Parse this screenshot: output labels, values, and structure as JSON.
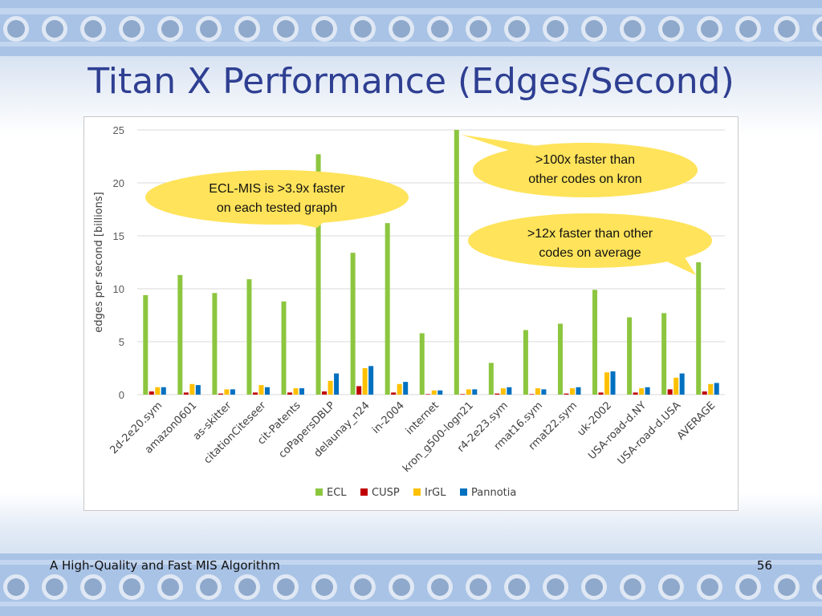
{
  "slide": {
    "title": "Titan X Performance (Edges/Second)",
    "footer": "A High-Quality and Fast MIS Algorithm",
    "page_number": "56"
  },
  "colors": {
    "title": "#2e3f92",
    "callout_fill": "#ffe35a",
    "ECL": "#8cc63f",
    "CUSP": "#c00000",
    "IrGL": "#ffc000",
    "Pannotia": "#0070c0"
  },
  "chart_data": {
    "type": "bar",
    "title": "",
    "xlabel": "",
    "ylabel": "edges per second [billions]",
    "ylim": [
      0,
      25
    ],
    "yticks": [
      0,
      5,
      10,
      15,
      20,
      25
    ],
    "grid": true,
    "legend_position": "bottom",
    "categories": [
      "2d-2e20.sym",
      "amazon0601",
      "as-skitter",
      "citationCiteseer",
      "cit-Patents",
      "coPapersDBLP",
      "delaunay_n24",
      "in-2004",
      "internet",
      "kron_g500-logn21",
      "r4-2e23.sym",
      "rmat16.sym",
      "rmat22.sym",
      "uk-2002",
      "USA-road-d.NY",
      "USA-road-d.USA",
      "AVERAGE"
    ],
    "series": [
      {
        "name": "ECL",
        "values": [
          9.4,
          11.3,
          9.6,
          10.9,
          8.8,
          22.7,
          13.4,
          16.2,
          5.8,
          25.0,
          3.0,
          6.1,
          6.7,
          9.9,
          7.3,
          7.7,
          12.5
        ]
      },
      {
        "name": "CUSP",
        "values": [
          0.3,
          0.2,
          0.1,
          0.2,
          0.2,
          0.3,
          0.8,
          0.2,
          0.05,
          0.05,
          0.1,
          0.05,
          0.1,
          0.2,
          0.2,
          0.5,
          0.3
        ]
      },
      {
        "name": "IrGL",
        "values": [
          0.7,
          1.0,
          0.5,
          0.9,
          0.6,
          1.3,
          2.5,
          1.0,
          0.4,
          0.5,
          0.6,
          0.6,
          0.6,
          2.1,
          0.6,
          1.6,
          1.0
        ]
      },
      {
        "name": "Pannotia",
        "values": [
          0.7,
          0.9,
          0.5,
          0.7,
          0.6,
          2.0,
          2.7,
          1.2,
          0.4,
          0.5,
          0.7,
          0.5,
          0.7,
          2.2,
          0.7,
          2.0,
          1.1
        ]
      }
    ],
    "annotations": [
      {
        "text_lines": [
          ">100x faster than",
          "other codes on kron"
        ]
      },
      {
        "text_lines": [
          "ECL-MIS is >3.9x faster",
          "on each tested graph"
        ]
      },
      {
        "text_lines": [
          ">12x faster than other",
          "codes on average"
        ]
      }
    ]
  }
}
